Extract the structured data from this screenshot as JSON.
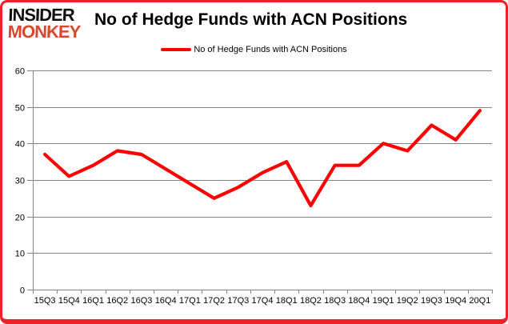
{
  "header": {
    "logo": {
      "line1": "INSIDER",
      "line2": "MONKEY",
      "line1_color": "#121212",
      "line2_color": "#d9472f"
    },
    "title": "No of Hedge Funds with ACN Positions"
  },
  "legend": {
    "label": "No of Hedge Funds with ACN Positions",
    "swatch_color": "#fe0101"
  },
  "frame": {
    "border_color": "#ee2127"
  },
  "chart_data": {
    "type": "line",
    "title": "No of Hedge Funds with ACN Positions",
    "categories": [
      "15Q3",
      "15Q4",
      "16Q1",
      "16Q2",
      "16Q3",
      "16Q4",
      "17Q1",
      "17Q2",
      "17Q3",
      "17Q4",
      "18Q1",
      "18Q2",
      "18Q3",
      "18Q4",
      "19Q1",
      "19Q2",
      "19Q3",
      "19Q4",
      "20Q1"
    ],
    "series": [
      {
        "name": "No of Hedge Funds with ACN Positions",
        "color": "#fe0101",
        "values": [
          37,
          31,
          34,
          38,
          37,
          33,
          29,
          25,
          28,
          32,
          35,
          23,
          34,
          34,
          40,
          38,
          45,
          41,
          49
        ]
      }
    ],
    "xlabel": "",
    "ylabel": "",
    "ylim": [
      0,
      60
    ],
    "ytick_step": 10,
    "grid": true,
    "legend_position": "top-center",
    "grid_color": "#848484",
    "axis_color": "#848484",
    "tick_label_color": "#000000"
  }
}
